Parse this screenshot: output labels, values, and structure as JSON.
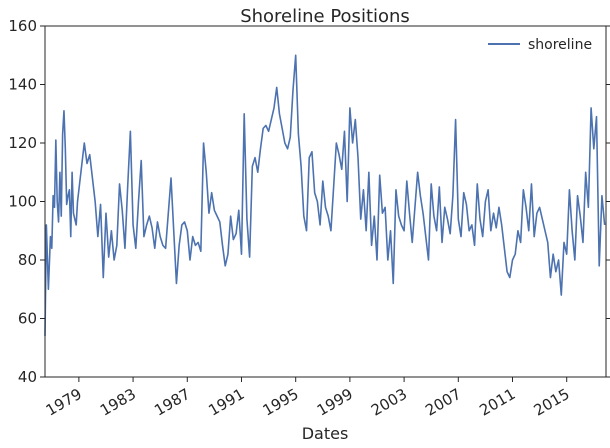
{
  "chart_data": {
    "type": "line",
    "title": "Shoreline Positions",
    "xlabel": "Dates",
    "ylabel": "",
    "ylim": [
      40,
      160
    ],
    "yticks": [
      40,
      60,
      80,
      100,
      120,
      140,
      160
    ],
    "xlim": [
      1976.5,
      2017.9
    ],
    "xticks": [
      1979,
      1983,
      1987,
      1991,
      1995,
      1999,
      2003,
      2007,
      2011,
      2015
    ],
    "xtick_labels": [
      "1979",
      "1983",
      "1987",
      "1991",
      "1995",
      "1999",
      "2003",
      "2007",
      "2011",
      "2015"
    ],
    "grid": false,
    "legend_position": "top-right",
    "series": [
      {
        "name": "shoreline",
        "color": "#4c72b0",
        "x": [
          1976.5,
          1976.6,
          1976.75,
          1976.9,
          1977.0,
          1977.1,
          1977.2,
          1977.3,
          1977.4,
          1977.5,
          1977.6,
          1977.7,
          1977.8,
          1977.9,
          1978.0,
          1978.1,
          1978.2,
          1978.3,
          1978.4,
          1978.5,
          1978.6,
          1978.7,
          1978.8,
          1978.9,
          1979.0,
          1979.2,
          1979.4,
          1979.6,
          1979.8,
          1980.0,
          1980.2,
          1980.4,
          1980.6,
          1980.8,
          1981.0,
          1981.2,
          1981.4,
          1981.6,
          1981.8,
          1982.0,
          1982.2,
          1982.4,
          1982.6,
          1982.8,
          1983.0,
          1983.2,
          1983.4,
          1983.6,
          1983.8,
          1984.0,
          1984.2,
          1984.4,
          1984.6,
          1984.8,
          1985.0,
          1985.2,
          1985.4,
          1985.6,
          1985.8,
          1986.0,
          1986.2,
          1986.4,
          1986.6,
          1986.8,
          1987.0,
          1987.2,
          1987.4,
          1987.6,
          1987.8,
          1988.0,
          1988.2,
          1988.4,
          1988.6,
          1988.8,
          1989.0,
          1989.2,
          1989.4,
          1989.6,
          1989.8,
          1990.0,
          1990.2,
          1990.4,
          1990.6,
          1990.8,
          1991.0,
          1991.2,
          1991.4,
          1991.6,
          1991.8,
          1992.0,
          1992.2,
          1992.4,
          1992.6,
          1992.8,
          1993.0,
          1993.2,
          1993.4,
          1993.6,
          1993.8,
          1994.0,
          1994.2,
          1994.4,
          1994.6,
          1994.8,
          1995.0,
          1995.2,
          1995.4,
          1995.6,
          1995.8,
          1996.0,
          1996.2,
          1996.4,
          1996.6,
          1996.8,
          1997.0,
          1997.2,
          1997.4,
          1997.6,
          1997.8,
          1998.0,
          1998.2,
          1998.4,
          1998.6,
          1998.8,
          1999.0,
          1999.2,
          1999.4,
          1999.6,
          1999.8,
          2000.0,
          2000.2,
          2000.4,
          2000.6,
          2000.8,
          2001.0,
          2001.2,
          2001.4,
          2001.6,
          2001.8,
          2002.0,
          2002.2,
          2002.4,
          2002.6,
          2002.8,
          2003.0,
          2003.2,
          2003.4,
          2003.6,
          2003.8,
          2004.0,
          2004.2,
          2004.4,
          2004.6,
          2004.8,
          2005.0,
          2005.2,
          2005.4,
          2005.6,
          2005.8,
          2006.0,
          2006.2,
          2006.4,
          2006.6,
          2006.8,
          2007.0,
          2007.2,
          2007.4,
          2007.6,
          2007.8,
          2008.0,
          2008.2,
          2008.4,
          2008.6,
          2008.8,
          2009.0,
          2009.2,
          2009.4,
          2009.6,
          2009.8,
          2010.0,
          2010.2,
          2010.4,
          2010.6,
          2010.8,
          2011.0,
          2011.2,
          2011.4,
          2011.6,
          2011.8,
          2012.0,
          2012.2,
          2012.4,
          2012.6,
          2012.8,
          2013.0,
          2013.2,
          2013.4,
          2013.6,
          2013.8,
          2014.0,
          2014.2,
          2014.4,
          2014.6,
          2014.8,
          2015.0,
          2015.2,
          2015.4,
          2015.6,
          2015.8,
          2016.0,
          2016.2,
          2016.4,
          2016.6,
          2016.8,
          2017.0,
          2017.2,
          2017.4,
          2017.6,
          2017.8
        ],
        "values": [
          54,
          92,
          70,
          88,
          84,
          102,
          98,
          121,
          100,
          93,
          110,
          95,
          123,
          131,
          118,
          99,
          102,
          104,
          88,
          110,
          96,
          94,
          92,
          100,
          104,
          112,
          120,
          113,
          116,
          108,
          100,
          88,
          99,
          74,
          96,
          81,
          90,
          80,
          85,
          106,
          97,
          84,
          105,
          124,
          92,
          84,
          100,
          114,
          88,
          92,
          95,
          91,
          84,
          93,
          88,
          85,
          84,
          96,
          108,
          90,
          72,
          85,
          92,
          93,
          90,
          80,
          88,
          85,
          86,
          83,
          120,
          110,
          96,
          103,
          97,
          95,
          93,
          85,
          78,
          82,
          95,
          87,
          89,
          97,
          82,
          130,
          94,
          81,
          112,
          115,
          110,
          118,
          125,
          126,
          124,
          128,
          132,
          139,
          130,
          125,
          120,
          118,
          122,
          138,
          150,
          123,
          112,
          95,
          90,
          115,
          117,
          103,
          100,
          92,
          107,
          98,
          95,
          90,
          105,
          120,
          116,
          111,
          124,
          100,
          132,
          120,
          128,
          115,
          94,
          104,
          90,
          110,
          85,
          95,
          80,
          109,
          96,
          98,
          80,
          90,
          72,
          104,
          95,
          92,
          90,
          107,
          96,
          86,
          98,
          110,
          102,
          96,
          88,
          80,
          106,
          95,
          90,
          105,
          86,
          98,
          94,
          89,
          102,
          128,
          94,
          88,
          103,
          99,
          90,
          92,
          85,
          106,
          94,
          88,
          100,
          104,
          90,
          96,
          91,
          98,
          92,
          84,
          76,
          74,
          80,
          82,
          90,
          86,
          104,
          98,
          90,
          106,
          88,
          96,
          98,
          94,
          90,
          86,
          74,
          82,
          76,
          80,
          68,
          86,
          82,
          104,
          90,
          80,
          102,
          95,
          86,
          110,
          98,
          132,
          118,
          129,
          78,
          102,
          92
        ]
      }
    ]
  }
}
